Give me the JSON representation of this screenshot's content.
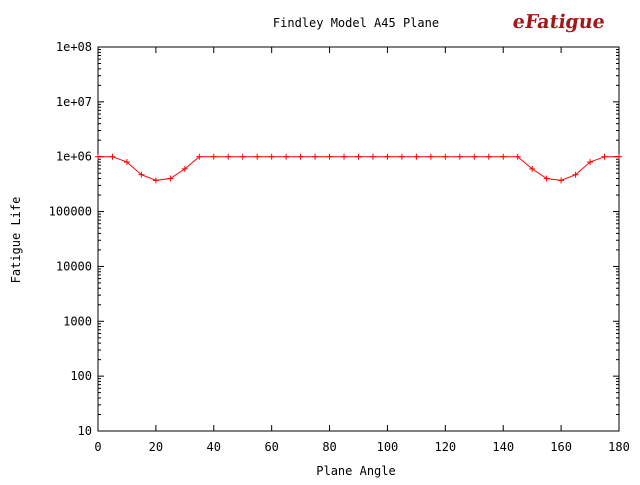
{
  "chart_data": {
    "type": "line",
    "title": "Findley Model A45 Plane",
    "xlabel": "Plane Angle",
    "ylabel": "Fatigue Life",
    "x_scale": "linear",
    "y_scale": "log",
    "xlim": [
      0,
      180
    ],
    "ylim": [
      10,
      100000000
    ],
    "x_ticks": [
      0,
      20,
      40,
      60,
      80,
      100,
      120,
      140,
      160,
      180
    ],
    "x_tick_labels": [
      "0",
      "20",
      "40",
      "60",
      "80",
      "100",
      "120",
      "140",
      "160",
      "180"
    ],
    "y_ticks": [
      10,
      100,
      1000,
      10000,
      100000,
      1000000,
      10000000,
      100000000
    ],
    "y_tick_labels": [
      "10",
      "100",
      "1000",
      "10000",
      "100000",
      "1e+06",
      "1e+07",
      "1e+08"
    ],
    "grid": false,
    "legend": "none",
    "series": [
      {
        "color": "#ff0000",
        "marker": "+",
        "x": [
          0,
          5,
          10,
          15,
          20,
          25,
          30,
          35,
          40,
          45,
          50,
          55,
          60,
          65,
          70,
          75,
          80,
          85,
          90,
          95,
          100,
          105,
          110,
          115,
          120,
          125,
          130,
          135,
          140,
          145,
          150,
          155,
          160,
          165,
          170,
          175,
          180
        ],
        "y": [
          1000000,
          1000000,
          800000,
          470000,
          370000,
          400000,
          600000,
          1000000,
          1000000,
          1000000,
          1000000,
          1000000,
          1000000,
          1000000,
          1000000,
          1000000,
          1000000,
          1000000,
          1000000,
          1000000,
          1000000,
          1000000,
          1000000,
          1000000,
          1000000,
          1000000,
          1000000,
          1000000,
          1000000,
          1000000,
          600000,
          400000,
          370000,
          470000,
          800000,
          1000000,
          1000000
        ]
      }
    ]
  },
  "logo": {
    "text": "eFatigue",
    "color": "#a01818"
  }
}
